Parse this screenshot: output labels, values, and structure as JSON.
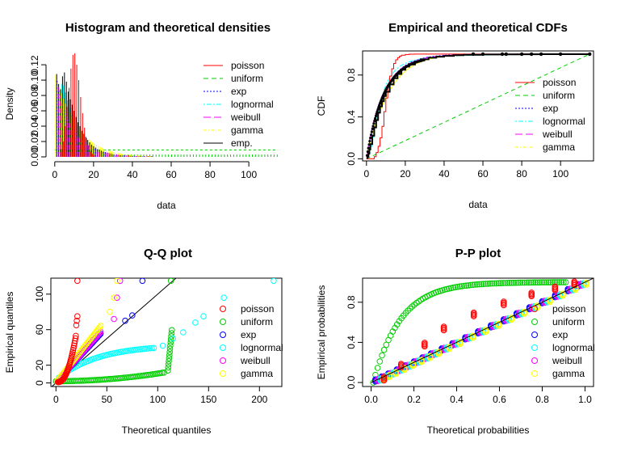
{
  "colors": {
    "poisson": "#ff0000",
    "uniform": "#00cd00",
    "exp": "#0000ff",
    "lognormal": "#00ffff",
    "weibull": "#ff00ff",
    "gamma": "#ffff00",
    "emp": "#000000"
  },
  "chart_data": [
    {
      "id": "density",
      "type": "bar",
      "title": "Histogram and theoretical densities",
      "xlabel": "data",
      "ylabel": "Density",
      "xlim": [
        -2,
        117
      ],
      "ylim": [
        0,
        0.138
      ],
      "xticks": [
        0,
        20,
        40,
        60,
        80,
        100
      ],
      "yticks": [
        0,
        0.02,
        0.04,
        0.06,
        0.08,
        0.1,
        0.12
      ],
      "ytick_labels": [
        "0.00",
        "0.02",
        "0.04",
        "0.06",
        "0.08",
        "0.10",
        "0.12"
      ],
      "legend_position": "top-right",
      "legend": [
        {
          "key": "poisson",
          "label": "poisson",
          "dash": "none"
        },
        {
          "key": "uniform",
          "label": "uniform",
          "dash": "6,4"
        },
        {
          "key": "exp",
          "label": "exp",
          "dash": "2,2"
        },
        {
          "key": "lognormal",
          "label": "lognormal",
          "dash": "2,2,6,2"
        },
        {
          "key": "weibull",
          "label": "weibull",
          "dash": "9,4"
        },
        {
          "key": "gamma",
          "label": "gamma",
          "dash": "4,2,1,2"
        },
        {
          "key": "emp",
          "label": "emp.",
          "dash": "none"
        }
      ],
      "histogram": {
        "bins": [
          1,
          2,
          3,
          4,
          5,
          6,
          7,
          8,
          9,
          10,
          11,
          12,
          13,
          14,
          15,
          16,
          17,
          18,
          19,
          20,
          21,
          22,
          23,
          24,
          25,
          26,
          27,
          28,
          29,
          30,
          32,
          34,
          36,
          38,
          40,
          42,
          44,
          46,
          48,
          50
        ],
        "density": [
          0.108,
          0.095,
          0.088,
          0.105,
          0.11,
          0.098,
          0.085,
          0.075,
          0.068,
          0.06,
          0.052,
          0.045,
          0.04,
          0.034,
          0.03,
          0.026,
          0.022,
          0.019,
          0.016,
          0.014,
          0.012,
          0.01,
          0.009,
          0.008,
          0.007,
          0.006,
          0.005,
          0.004,
          0.004,
          0.003,
          0.003,
          0.002,
          0.002,
          0.002,
          0.001,
          0.001,
          0.001,
          0.001,
          0.001,
          0.001
        ]
      },
      "poisson_pmf": {
        "x": [
          3,
          4,
          5,
          6,
          7,
          8,
          9,
          10,
          11,
          12,
          13,
          14,
          15,
          16,
          17,
          18,
          19,
          20
        ],
        "y": [
          0.01,
          0.02,
          0.04,
          0.065,
          0.09,
          0.115,
          0.133,
          0.135,
          0.12,
          0.1,
          0.078,
          0.057,
          0.038,
          0.024,
          0.015,
          0.008,
          0.004,
          0.002
        ]
      },
      "uniform_level": 0.009,
      "uniform_range": [
        0,
        115
      ]
    },
    {
      "id": "cdf",
      "type": "line",
      "title": "Empirical and theoretical CDFs",
      "xlabel": "data",
      "ylabel": "CDF",
      "xlim": [
        -2,
        117
      ],
      "ylim": [
        -0.02,
        1.03
      ],
      "xticks": [
        0,
        20,
        40,
        60,
        80,
        100
      ],
      "yticks": [
        0,
        0.4,
        0.8
      ],
      "ytick_labels": [
        "0.0",
        "0.4",
        "0.8"
      ],
      "legend_position": "right",
      "legend": [
        {
          "key": "poisson",
          "label": "poisson",
          "dash": "none"
        },
        {
          "key": "uniform",
          "label": "uniform",
          "dash": "6,4"
        },
        {
          "key": "exp",
          "label": "exp",
          "dash": "2,2"
        },
        {
          "key": "lognormal",
          "label": "lognormal",
          "dash": "2,2,6,2"
        },
        {
          "key": "weibull",
          "label": "weibull",
          "dash": "9,4"
        },
        {
          "key": "gamma",
          "label": "gamma",
          "dash": "4,2,1,2"
        }
      ],
      "empirical": {
        "x": [
          0.5,
          1,
          1.5,
          2,
          3,
          4,
          5,
          6,
          7,
          8,
          9,
          10,
          12,
          14,
          16,
          18,
          20,
          22,
          25,
          28,
          32,
          36,
          40,
          45,
          50,
          60,
          70,
          80,
          90,
          100,
          115
        ],
        "y": [
          0.02,
          0.05,
          0.09,
          0.14,
          0.22,
          0.3,
          0.37,
          0.44,
          0.5,
          0.55,
          0.6,
          0.64,
          0.71,
          0.77,
          0.81,
          0.85,
          0.88,
          0.9,
          0.93,
          0.95,
          0.965,
          0.975,
          0.983,
          0.99,
          0.993,
          0.996,
          0.997,
          0.998,
          0.999,
          0.9995,
          1.0
        ]
      },
      "poisson_cdf": {
        "x": [
          4,
          5,
          6,
          7,
          8,
          9,
          10,
          11,
          12,
          13,
          14,
          15,
          16,
          17,
          18,
          20,
          22,
          25,
          30
        ],
        "y": [
          0.02,
          0.06,
          0.12,
          0.2,
          0.31,
          0.45,
          0.58,
          0.7,
          0.79,
          0.86,
          0.91,
          0.945,
          0.965,
          0.98,
          0.99,
          0.996,
          0.999,
          1.0,
          1.0
        ]
      },
      "uniform_cdf": {
        "x": [
          0,
          115
        ],
        "y": [
          0,
          1
        ]
      }
    },
    {
      "id": "qq",
      "type": "scatter",
      "title": "Q-Q plot",
      "xlabel": "Theoretical quantiles",
      "ylabel": "Empirical quantiles",
      "xlim": [
        -5,
        222
      ],
      "ylim": [
        -4,
        118
      ],
      "xticks": [
        0,
        50,
        100,
        150,
        200
      ],
      "yticks": [
        0,
        20,
        60,
        100
      ],
      "legend_position": "right",
      "legend": [
        {
          "key": "poisson",
          "label": "poisson"
        },
        {
          "key": "uniform",
          "label": "uniform"
        },
        {
          "key": "exp",
          "label": "exp"
        },
        {
          "key": "lognormal",
          "label": "lognormal"
        },
        {
          "key": "weibull",
          "label": "weibull"
        },
        {
          "key": "gamma",
          "label": "gamma"
        }
      ]
    },
    {
      "id": "pp",
      "type": "scatter",
      "title": "P-P plot",
      "xlabel": "Theoretical probabilities",
      "ylabel": "Empirical probabilities",
      "xlim": [
        -0.04,
        1.04
      ],
      "ylim": [
        -0.04,
        1.04
      ],
      "xticks": [
        0,
        0.2,
        0.4,
        0.6,
        0.8,
        1.0
      ],
      "xtick_labels": [
        "0.0",
        "0.2",
        "0.4",
        "0.6",
        "0.8",
        "1.0"
      ],
      "yticks": [
        0,
        0.4,
        0.8
      ],
      "ytick_labels": [
        "0.0",
        "0.4",
        "0.8"
      ],
      "legend_position": "right",
      "legend": [
        {
          "key": "poisson",
          "label": "poisson"
        },
        {
          "key": "uniform",
          "label": "uniform"
        },
        {
          "key": "exp",
          "label": "exp"
        },
        {
          "key": "lognormal",
          "label": "lognormal"
        },
        {
          "key": "weibull",
          "label": "weibull"
        },
        {
          "key": "gamma",
          "label": "gamma"
        }
      ]
    }
  ]
}
